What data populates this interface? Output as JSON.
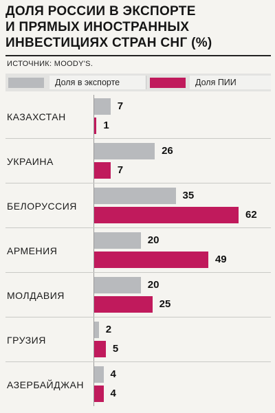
{
  "chart_data": {
    "type": "bar",
    "orientation": "horizontal",
    "title": [
      "ДОЛЯ РОССИИ В ЭКСПОРТЕ",
      "И ПРЯМЫХ ИНОСТРАННЫХ",
      "ИНВЕСТИЦИЯХ СТРАН СНГ (%)"
    ],
    "source": "ИСТОЧНИК: MOODY'S.",
    "categories": [
      "КАЗАХСТАН",
      "УКРАИНА",
      "БЕЛОРУССИЯ",
      "АРМЕНИЯ",
      "МОЛДАВИЯ",
      "ГРУЗИЯ",
      "АЗЕРБАЙДЖАН"
    ],
    "series": [
      {
        "name": "Доля в экспорте",
        "color": "#b8babd",
        "values": [
          7,
          26,
          35,
          20,
          20,
          2,
          4
        ]
      },
      {
        "name": "Доля ПИИ",
        "color": "#c01a5c",
        "values": [
          1,
          7,
          62,
          49,
          25,
          5,
          4
        ]
      }
    ],
    "xlabel": "",
    "ylabel": "",
    "legend": "top",
    "grid": false
  }
}
